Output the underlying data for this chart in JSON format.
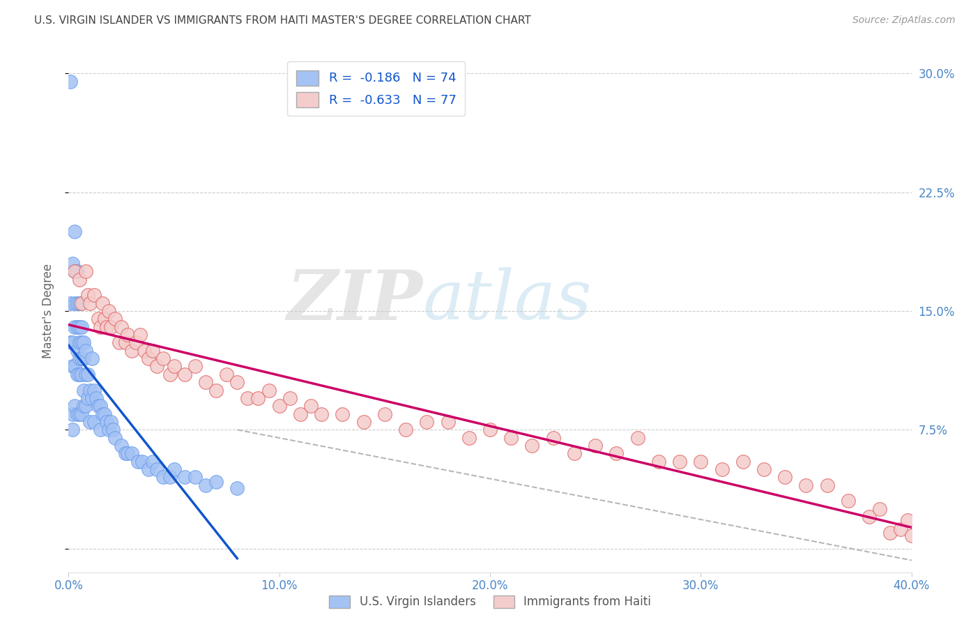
{
  "title": "U.S. VIRGIN ISLANDER VS IMMIGRANTS FROM HAITI MASTER'S DEGREE CORRELATION CHART",
  "source": "Source: ZipAtlas.com",
  "ylabel": "Master's Degree",
  "watermark_zip": "ZIP",
  "watermark_atlas": "atlas",
  "legend_blue_R": "R =  -0.186",
  "legend_blue_N": "N = 74",
  "legend_pink_R": "R =  -0.633",
  "legend_pink_N": "N = 77",
  "xlim": [
    0.0,
    0.4
  ],
  "ylim": [
    -0.015,
    0.315
  ],
  "xticks": [
    0.0,
    0.1,
    0.2,
    0.3,
    0.4
  ],
  "yticks": [
    0.0,
    0.075,
    0.15,
    0.225,
    0.3
  ],
  "xtick_labels": [
    "0.0%",
    "10.0%",
    "20.0%",
    "30.0%",
    "40.0%"
  ],
  "ytick_labels_right": [
    "",
    "7.5%",
    "15.0%",
    "22.5%",
    "30.0%"
  ],
  "blue_color": "#a4c2f4",
  "pink_color": "#f4cccc",
  "blue_edge_color": "#6d9eeb",
  "pink_edge_color": "#e06666",
  "blue_line_color": "#1155cc",
  "pink_line_color": "#cc0066",
  "dash_line_color": "#b7b7b7",
  "grid_color": "#cccccc",
  "title_color": "#434343",
  "axis_label_color": "#4a86c8",
  "background_color": "#ffffff",
  "blue_x": [
    0.001,
    0.001,
    0.001,
    0.002,
    0.002,
    0.002,
    0.002,
    0.002,
    0.003,
    0.003,
    0.003,
    0.003,
    0.003,
    0.003,
    0.004,
    0.004,
    0.004,
    0.004,
    0.004,
    0.004,
    0.005,
    0.005,
    0.005,
    0.005,
    0.005,
    0.005,
    0.006,
    0.006,
    0.006,
    0.006,
    0.006,
    0.007,
    0.007,
    0.007,
    0.007,
    0.008,
    0.008,
    0.008,
    0.009,
    0.009,
    0.01,
    0.01,
    0.011,
    0.011,
    0.012,
    0.012,
    0.013,
    0.014,
    0.015,
    0.015,
    0.016,
    0.017,
    0.018,
    0.019,
    0.02,
    0.021,
    0.022,
    0.025,
    0.027,
    0.028,
    0.03,
    0.033,
    0.035,
    0.038,
    0.04,
    0.042,
    0.045,
    0.048,
    0.05,
    0.055,
    0.06,
    0.065,
    0.07,
    0.08
  ],
  "blue_y": [
    0.295,
    0.155,
    0.13,
    0.18,
    0.13,
    0.115,
    0.085,
    0.075,
    0.2,
    0.175,
    0.155,
    0.14,
    0.115,
    0.09,
    0.175,
    0.155,
    0.14,
    0.125,
    0.11,
    0.085,
    0.155,
    0.14,
    0.13,
    0.12,
    0.11,
    0.085,
    0.14,
    0.13,
    0.12,
    0.11,
    0.085,
    0.13,
    0.12,
    0.1,
    0.09,
    0.125,
    0.11,
    0.09,
    0.11,
    0.095,
    0.1,
    0.08,
    0.12,
    0.095,
    0.1,
    0.08,
    0.095,
    0.09,
    0.09,
    0.075,
    0.085,
    0.085,
    0.08,
    0.075,
    0.08,
    0.075,
    0.07,
    0.065,
    0.06,
    0.06,
    0.06,
    0.055,
    0.055,
    0.05,
    0.055,
    0.05,
    0.045,
    0.045,
    0.05,
    0.045,
    0.045,
    0.04,
    0.042,
    0.038
  ],
  "pink_x": [
    0.003,
    0.005,
    0.006,
    0.008,
    0.009,
    0.01,
    0.012,
    0.014,
    0.015,
    0.016,
    0.017,
    0.018,
    0.019,
    0.02,
    0.022,
    0.024,
    0.025,
    0.027,
    0.028,
    0.03,
    0.032,
    0.034,
    0.036,
    0.038,
    0.04,
    0.042,
    0.045,
    0.048,
    0.05,
    0.055,
    0.06,
    0.065,
    0.07,
    0.075,
    0.08,
    0.085,
    0.09,
    0.095,
    0.1,
    0.105,
    0.11,
    0.115,
    0.12,
    0.13,
    0.14,
    0.15,
    0.16,
    0.17,
    0.18,
    0.19,
    0.2,
    0.21,
    0.22,
    0.23,
    0.24,
    0.25,
    0.26,
    0.27,
    0.28,
    0.29,
    0.3,
    0.31,
    0.32,
    0.33,
    0.34,
    0.35,
    0.36,
    0.37,
    0.38,
    0.385,
    0.39,
    0.395,
    0.398,
    0.4,
    0.405,
    0.408,
    0.41
  ],
  "pink_y": [
    0.175,
    0.17,
    0.155,
    0.175,
    0.16,
    0.155,
    0.16,
    0.145,
    0.14,
    0.155,
    0.145,
    0.14,
    0.15,
    0.14,
    0.145,
    0.13,
    0.14,
    0.13,
    0.135,
    0.125,
    0.13,
    0.135,
    0.125,
    0.12,
    0.125,
    0.115,
    0.12,
    0.11,
    0.115,
    0.11,
    0.115,
    0.105,
    0.1,
    0.11,
    0.105,
    0.095,
    0.095,
    0.1,
    0.09,
    0.095,
    0.085,
    0.09,
    0.085,
    0.085,
    0.08,
    0.085,
    0.075,
    0.08,
    0.08,
    0.07,
    0.075,
    0.07,
    0.065,
    0.07,
    0.06,
    0.065,
    0.06,
    0.07,
    0.055,
    0.055,
    0.055,
    0.05,
    0.055,
    0.05,
    0.045,
    0.04,
    0.04,
    0.03,
    0.02,
    0.025,
    0.01,
    0.012,
    0.018,
    0.008,
    0.012,
    0.006,
    0.005
  ]
}
